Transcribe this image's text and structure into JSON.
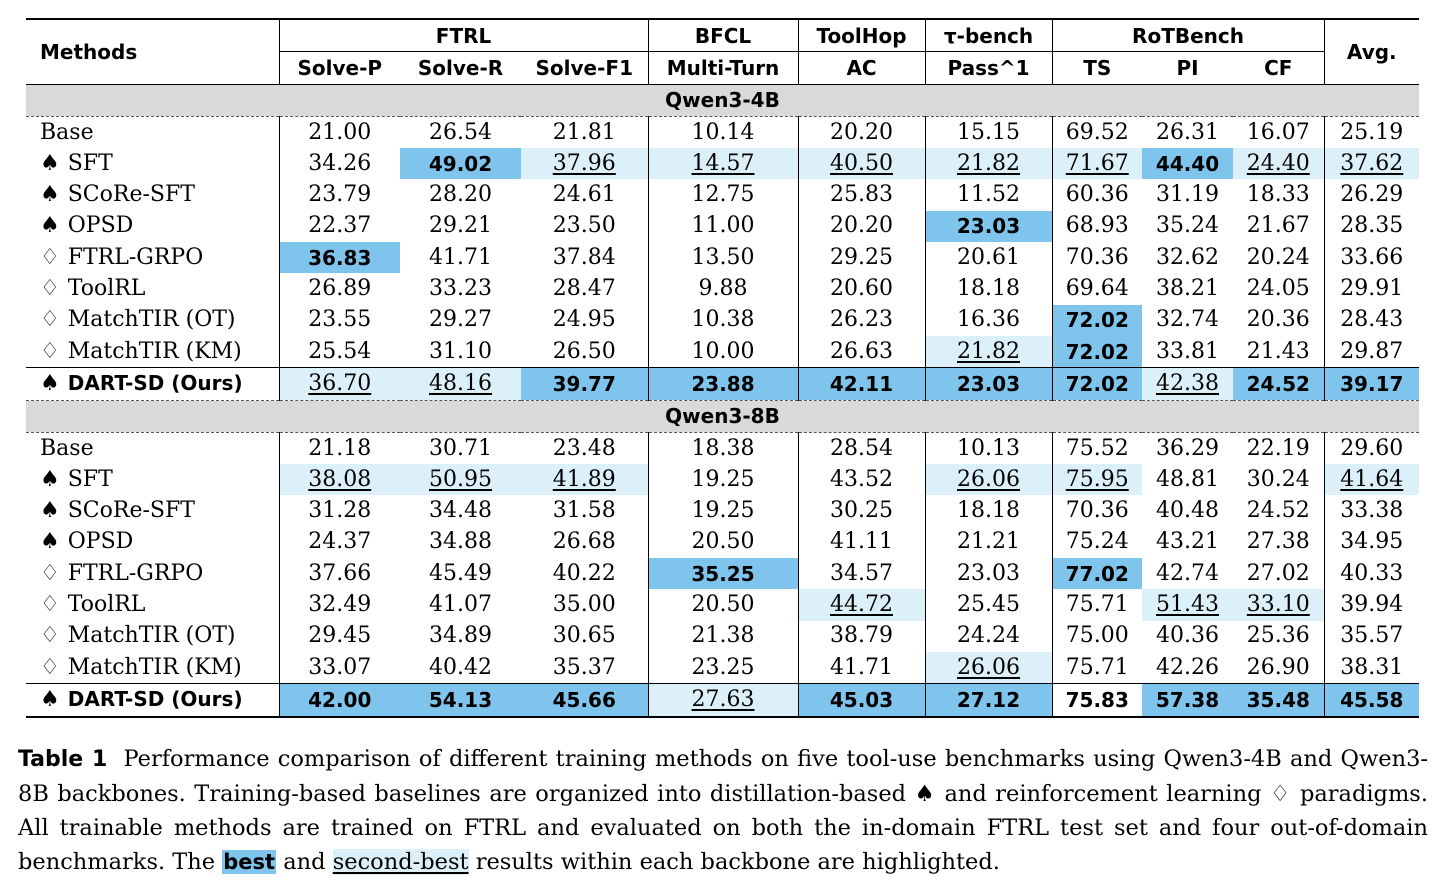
{
  "table": {
    "header": {
      "methods": "Methods",
      "avg": "Avg.",
      "groups": [
        {
          "name": "FTRL",
          "span": 3
        },
        {
          "name": "BFCL",
          "span": 1
        },
        {
          "name": "ToolHop",
          "span": 1
        },
        {
          "name": "τ-bench",
          "span": 1
        },
        {
          "name": "RoTBench",
          "span": 3
        }
      ],
      "subheaders": [
        "Solve-P",
        "Solve-R",
        "Solve-F1",
        "Multi-Turn",
        "AC",
        "Pass^1",
        "TS",
        "PI",
        "CF"
      ]
    },
    "sections": [
      {
        "title": "Qwen3-4B",
        "rows": [
          {
            "marker": "",
            "method": "Base",
            "values": [
              "21.00",
              "26.54",
              "21.81",
              "10.14",
              "20.20",
              "15.15",
              "69.52",
              "26.31",
              "16.07",
              "25.19"
            ],
            "marks": [
              "",
              "",
              "",
              "",
              "",
              "",
              "",
              "",
              "",
              ""
            ]
          },
          {
            "marker": "♠",
            "method": "SFT",
            "values": [
              "34.26",
              "49.02",
              "37.96",
              "14.57",
              "40.50",
              "21.82",
              "71.67",
              "44.40",
              "24.40",
              "37.62"
            ],
            "marks": [
              "",
              "best",
              "second",
              "second",
              "second",
              "second",
              "second",
              "best",
              "second",
              "second"
            ]
          },
          {
            "marker": "♠",
            "method": "SCoRe-SFT",
            "values": [
              "23.79",
              "28.20",
              "24.61",
              "12.75",
              "25.83",
              "11.52",
              "60.36",
              "31.19",
              "18.33",
              "26.29"
            ],
            "marks": [
              "",
              "",
              "",
              "",
              "",
              "",
              "",
              "",
              "",
              ""
            ]
          },
          {
            "marker": "♠",
            "method": "OPSD",
            "values": [
              "22.37",
              "29.21",
              "23.50",
              "11.00",
              "20.20",
              "23.03",
              "68.93",
              "35.24",
              "21.67",
              "28.35"
            ],
            "marks": [
              "",
              "",
              "",
              "",
              "",
              "best",
              "",
              "",
              "",
              ""
            ]
          },
          {
            "marker": "♢",
            "method": "FTRL-GRPO",
            "values": [
              "36.83",
              "41.71",
              "37.84",
              "13.50",
              "29.25",
              "20.61",
              "70.36",
              "32.62",
              "20.24",
              "33.66"
            ],
            "marks": [
              "best",
              "",
              "",
              "",
              "",
              "",
              "",
              "",
              "",
              ""
            ]
          },
          {
            "marker": "♢",
            "method": "ToolRL",
            "values": [
              "26.89",
              "33.23",
              "28.47",
              "9.88",
              "20.60",
              "18.18",
              "69.64",
              "38.21",
              "24.05",
              "29.91"
            ],
            "marks": [
              "",
              "",
              "",
              "",
              "",
              "",
              "",
              "",
              "",
              ""
            ]
          },
          {
            "marker": "♢",
            "method": "MatchTIR (OT)",
            "values": [
              "23.55",
              "29.27",
              "24.95",
              "10.38",
              "26.23",
              "16.36",
              "72.02",
              "32.74",
              "20.36",
              "28.43"
            ],
            "marks": [
              "",
              "",
              "",
              "",
              "",
              "",
              "best",
              "",
              "",
              ""
            ]
          },
          {
            "marker": "♢",
            "method": "MatchTIR (KM)",
            "values": [
              "25.54",
              "31.10",
              "26.50",
              "10.00",
              "26.63",
              "21.82",
              "72.02",
              "33.81",
              "21.43",
              "29.87"
            ],
            "marks": [
              "",
              "",
              "",
              "",
              "",
              "second",
              "best",
              "",
              "",
              ""
            ]
          },
          {
            "marker": "♠",
            "method": "DART-SD (Ours)",
            "ours": true,
            "values": [
              "36.70",
              "48.16",
              "39.77",
              "23.88",
              "42.11",
              "23.03",
              "72.02",
              "42.38",
              "24.52",
              "39.17"
            ],
            "marks": [
              "second",
              "second",
              "best",
              "best",
              "best",
              "best",
              "best",
              "second",
              "best",
              "best"
            ]
          }
        ]
      },
      {
        "title": "Qwen3-8B",
        "rows": [
          {
            "marker": "",
            "method": "Base",
            "values": [
              "21.18",
              "30.71",
              "23.48",
              "18.38",
              "28.54",
              "10.13",
              "75.52",
              "36.29",
              "22.19",
              "29.60"
            ],
            "marks": [
              "",
              "",
              "",
              "",
              "",
              "",
              "",
              "",
              "",
              ""
            ]
          },
          {
            "marker": "♠",
            "method": "SFT",
            "values": [
              "38.08",
              "50.95",
              "41.89",
              "19.25",
              "43.52",
              "26.06",
              "75.95",
              "48.81",
              "30.24",
              "41.64"
            ],
            "marks": [
              "second",
              "second",
              "second",
              "",
              "",
              "second",
              "second",
              "",
              "",
              "second"
            ]
          },
          {
            "marker": "♠",
            "method": "SCoRe-SFT",
            "values": [
              "31.28",
              "34.48",
              "31.58",
              "19.25",
              "30.25",
              "18.18",
              "70.36",
              "40.48",
              "24.52",
              "33.38"
            ],
            "marks": [
              "",
              "",
              "",
              "",
              "",
              "",
              "",
              "",
              "",
              ""
            ]
          },
          {
            "marker": "♠",
            "method": "OPSD",
            "values": [
              "24.37",
              "34.88",
              "26.68",
              "20.50",
              "41.11",
              "21.21",
              "75.24",
              "43.21",
              "27.38",
              "34.95"
            ],
            "marks": [
              "",
              "",
              "",
              "",
              "",
              "",
              "",
              "",
              "",
              ""
            ]
          },
          {
            "marker": "♢",
            "method": "FTRL-GRPO",
            "values": [
              "37.66",
              "45.49",
              "40.22",
              "35.25",
              "34.57",
              "23.03",
              "77.02",
              "42.74",
              "27.02",
              "40.33"
            ],
            "marks": [
              "",
              "",
              "",
              "best",
              "",
              "",
              "best",
              "",
              "",
              ""
            ]
          },
          {
            "marker": "♢",
            "method": "ToolRL",
            "values": [
              "32.49",
              "41.07",
              "35.00",
              "20.50",
              "44.72",
              "25.45",
              "75.71",
              "51.43",
              "33.10",
              "39.94"
            ],
            "marks": [
              "",
              "",
              "",
              "",
              "second",
              "",
              "",
              "second",
              "second",
              ""
            ]
          },
          {
            "marker": "♢",
            "method": "MatchTIR (OT)",
            "values": [
              "29.45",
              "34.89",
              "30.65",
              "21.38",
              "38.79",
              "24.24",
              "75.00",
              "40.36",
              "25.36",
              "35.57"
            ],
            "marks": [
              "",
              "",
              "",
              "",
              "",
              "",
              "",
              "",
              "",
              ""
            ]
          },
          {
            "marker": "♢",
            "method": "MatchTIR (KM)",
            "values": [
              "33.07",
              "40.42",
              "35.37",
              "23.25",
              "41.71",
              "26.06",
              "75.71",
              "42.26",
              "26.90",
              "38.31"
            ],
            "marks": [
              "",
              "",
              "",
              "",
              "",
              "second",
              "",
              "",
              "",
              ""
            ]
          },
          {
            "marker": "♠",
            "method": "DART-SD (Ours)",
            "ours": true,
            "values": [
              "42.00",
              "54.13",
              "45.66",
              "27.63",
              "45.03",
              "27.12",
              "75.83",
              "57.38",
              "35.48",
              "45.58"
            ],
            "marks": [
              "best",
              "best",
              "best",
              "second",
              "best",
              "best",
              "",
              "best",
              "best",
              "best"
            ]
          }
        ]
      }
    ]
  },
  "caption": {
    "label": "Table 1",
    "text_1": "Performance comparison of different training methods on five tool-use benchmarks using Qwen3-4B and Qwen3-8B backbones. Training-based baselines are organized into distillation-based ♠ and reinforcement learning ♢ paradigms. All trainable methods are trained on FTRL and evaluated on both the in-domain FTRL test set and four out-of-domain benchmarks. The",
    "best_word": "best",
    "and_word": "and",
    "second_word": "second-best",
    "text_2": "results within each backbone are highlighted."
  }
}
